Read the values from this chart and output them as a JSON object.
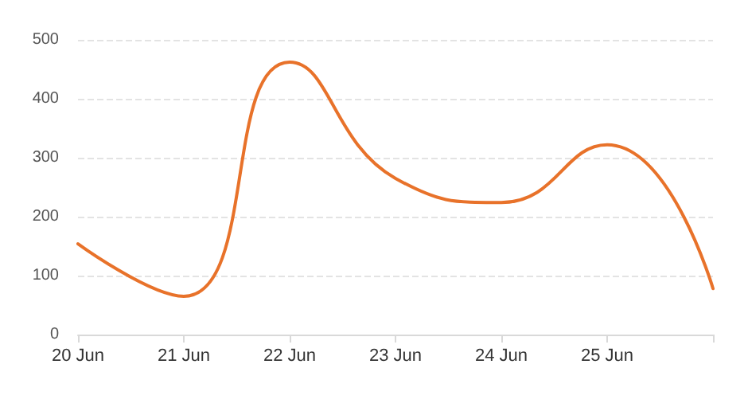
{
  "chart_data": {
    "type": "line",
    "categories": [
      "20 Jun",
      "21 Jun",
      "22 Jun",
      "23 Jun",
      "24 Jun",
      "25 Jun",
      null
    ],
    "series": [
      {
        "color": "#e8722a",
        "values": [
          154,
          65,
          462,
          265,
          224,
          322,
          78
        ]
      }
    ],
    "ylim": [
      0,
      500
    ],
    "yticks": [
      0,
      100,
      200,
      300,
      400,
      500
    ],
    "grid": "y",
    "marker": "none",
    "line_style": "solid"
  }
}
